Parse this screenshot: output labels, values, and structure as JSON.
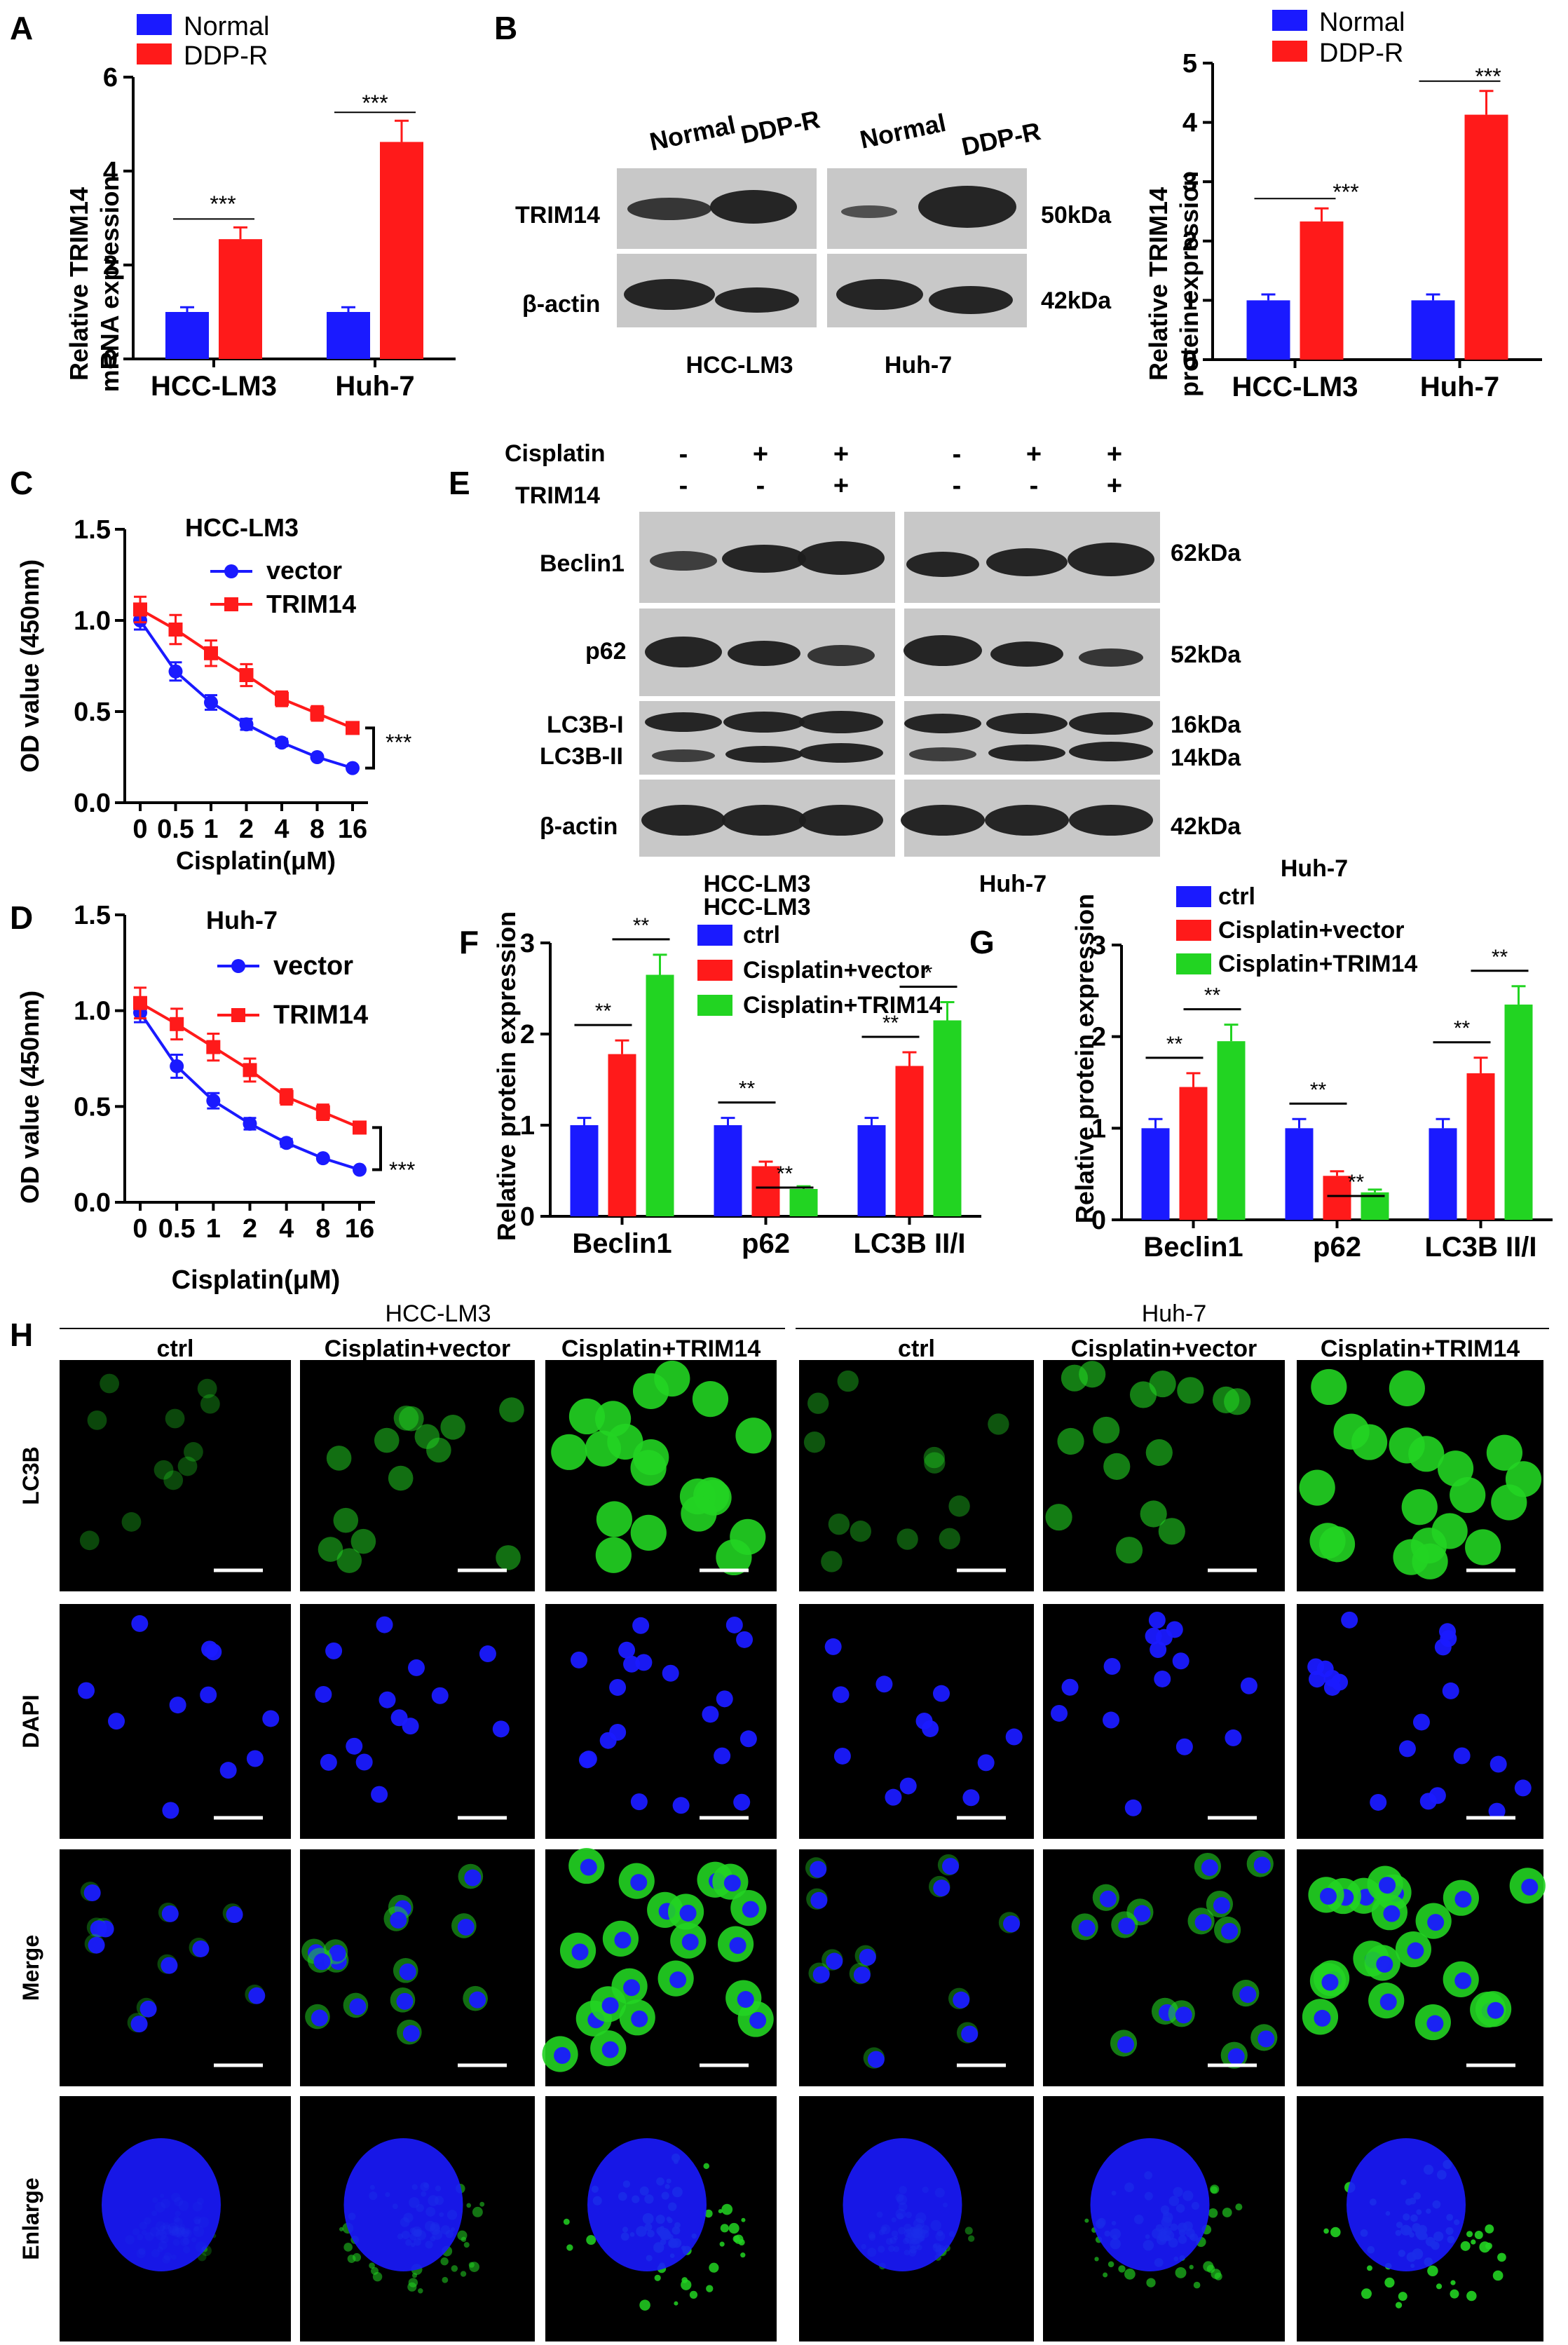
{
  "colors": {
    "blue": "#1a1aff",
    "red": "#ff1a1a",
    "green": "#22d422",
    "blot_bg": "#c8c8c8",
    "micro_bg": "#000000"
  },
  "panels": {
    "A": "A",
    "B": "B",
    "C": "C",
    "D": "D",
    "E": "E",
    "F": "F",
    "G": "G",
    "H": "H"
  },
  "panel_A": {
    "legend": [
      "Normal",
      "DDP-R"
    ],
    "ylabel_line1": "Relative TRIM14",
    "ylabel_line2": "mRNA expression",
    "sig": [
      "***",
      "***"
    ]
  },
  "panel_B": {
    "lanes_left": [
      "Normal",
      "DDP-R"
    ],
    "lanes_right": [
      "Normal",
      "DDP-R"
    ],
    "rows": [
      "TRIM14",
      "β-actin"
    ],
    "sizes": [
      "50kDa",
      "42kDa"
    ],
    "cells": [
      "HCC-LM3",
      "Huh-7"
    ]
  },
  "panel_B_chart": {
    "legend": [
      "Normal",
      "DDP-R"
    ],
    "ylabel_line1": "Relative TRIM14",
    "ylabel_line2": "protein  expression",
    "sig": [
      "***",
      "***"
    ]
  },
  "panel_C": {
    "title": "HCC-LM3",
    "legend": [
      "vector",
      "TRIM14"
    ],
    "ylabel": "OD value (450nm)",
    "xlabel": "Cisplatin(μM)",
    "sig": "***"
  },
  "panel_D": {
    "title": "Huh-7",
    "legend": [
      "vector",
      "TRIM14"
    ],
    "ylabel": "OD value (450nm)",
    "xlabel": "Cisplatin(μM)",
    "sig": "***"
  },
  "panel_E": {
    "treat_labels": [
      "Cisplatin",
      "TRIM14"
    ],
    "cisplatin_signs": [
      "-",
      "+",
      "+",
      "-",
      "+",
      "+"
    ],
    "trim14_signs": [
      "-",
      "-",
      "+",
      "-",
      "-",
      "+"
    ],
    "rows": [
      "Beclin1",
      "p62",
      "LC3B-I",
      "LC3B-II",
      "β-actin"
    ],
    "sizes": [
      "62kDa",
      "52kDa",
      "16kDa",
      "14kDa",
      "42kDa"
    ],
    "cells": [
      "HCC-LM3",
      "Huh-7"
    ]
  },
  "panel_F": {
    "title": "HCC-LM3",
    "legend": [
      "ctrl",
      "Cisplatin+vector",
      "Cisplatin+TRIM14"
    ],
    "ylabel": "Relative protein expression",
    "sig": [
      "**",
      "**",
      "**",
      "**",
      "**",
      "*"
    ]
  },
  "panel_G": {
    "title": "Huh-7",
    "legend": [
      "ctrl",
      "Cisplatin+vector",
      "Cisplatin+TRIM14"
    ],
    "ylabel": "Relative protein expression",
    "sig": [
      "**",
      "**",
      "**",
      "**",
      "**",
      "**"
    ]
  },
  "panel_H": {
    "groups": [
      "HCC-LM3",
      "Huh-7"
    ],
    "columns": [
      "ctrl",
      "Cisplatin+vector",
      "Cisplatin+TRIM14",
      "ctrl",
      "Cisplatin+vector",
      "Cisplatin+TRIM14"
    ],
    "rows": [
      "LC3B",
      "DAPI",
      "Merge",
      "Enlarge"
    ]
  },
  "chart_data": [
    {
      "id": "A",
      "type": "bar",
      "categories": [
        "HCC-LM3",
        "Huh-7"
      ],
      "series": [
        {
          "name": "Normal",
          "values": [
            1.0,
            1.0
          ],
          "errors": [
            0.1,
            0.1
          ]
        },
        {
          "name": "DDP-R",
          "values": [
            2.55,
            4.62
          ],
          "errors": [
            0.25,
            0.45
          ]
        }
      ],
      "ylim": [
        0,
        6
      ],
      "yticks": [
        0,
        2,
        4,
        6
      ]
    },
    {
      "id": "B",
      "type": "bar",
      "categories": [
        "HCC-LM3",
        "Huh-7"
      ],
      "series": [
        {
          "name": "Normal",
          "values": [
            1.0,
            1.0
          ],
          "errors": [
            0.1,
            0.1
          ]
        },
        {
          "name": "DDP-R",
          "values": [
            2.33,
            4.13
          ],
          "errors": [
            0.22,
            0.4
          ]
        }
      ],
      "ylim": [
        0,
        5
      ],
      "yticks": [
        0,
        1,
        2,
        3,
        4,
        5
      ]
    },
    {
      "id": "C",
      "type": "line",
      "x": [
        "0",
        "0.5",
        "1",
        "2",
        "4",
        "8",
        "16"
      ],
      "series": [
        {
          "name": "vector",
          "values": [
            1.0,
            0.72,
            0.55,
            0.43,
            0.33,
            0.25,
            0.19
          ],
          "errors": [
            0.05,
            0.05,
            0.04,
            0.03,
            0.02,
            0.01,
            0.01
          ]
        },
        {
          "name": "TRIM14",
          "values": [
            1.06,
            0.95,
            0.82,
            0.7,
            0.57,
            0.49,
            0.41
          ],
          "errors": [
            0.07,
            0.08,
            0.07,
            0.06,
            0.04,
            0.04,
            0.03
          ]
        }
      ],
      "ylim": [
        0,
        1.5
      ],
      "yticks": [
        0.0,
        0.5,
        1.0,
        1.5
      ]
    },
    {
      "id": "D",
      "type": "line",
      "x": [
        "0",
        "0.5",
        "1",
        "2",
        "4",
        "8",
        "16"
      ],
      "series": [
        {
          "name": "vector",
          "values": [
            0.99,
            0.71,
            0.53,
            0.41,
            0.31,
            0.23,
            0.17
          ],
          "errors": [
            0.05,
            0.06,
            0.04,
            0.03,
            0.02,
            0.01,
            0.01
          ]
        },
        {
          "name": "TRIM14",
          "values": [
            1.04,
            0.93,
            0.81,
            0.69,
            0.55,
            0.47,
            0.39
          ],
          "errors": [
            0.08,
            0.08,
            0.07,
            0.06,
            0.04,
            0.04,
            0.03
          ]
        }
      ],
      "ylim": [
        0,
        1.5
      ],
      "yticks": [
        0.0,
        0.5,
        1.0,
        1.5
      ]
    },
    {
      "id": "F",
      "type": "bar",
      "categories": [
        "Beclin1",
        "p62",
        "LC3B II/I"
      ],
      "series": [
        {
          "name": "ctrl",
          "values": [
            1.0,
            1.0,
            1.0
          ],
          "errors": [
            0.08,
            0.08,
            0.08
          ]
        },
        {
          "name": "Cisplatin+vector",
          "values": [
            1.78,
            0.55,
            1.65
          ],
          "errors": [
            0.15,
            0.05,
            0.15
          ]
        },
        {
          "name": "Cisplatin+TRIM14",
          "values": [
            2.65,
            0.3,
            2.15
          ],
          "errors": [
            0.22,
            0.03,
            0.2
          ]
        }
      ],
      "ylim": [
        0,
        3
      ],
      "yticks": [
        0,
        1,
        2,
        3
      ]
    },
    {
      "id": "G",
      "type": "bar",
      "categories": [
        "Beclin1",
        "p62",
        "LC3B II/I"
      ],
      "series": [
        {
          "name": "ctrl",
          "values": [
            1.0,
            1.0,
            1.0
          ],
          "errors": [
            0.1,
            0.1,
            0.1
          ]
        },
        {
          "name": "Cisplatin+vector",
          "values": [
            1.45,
            0.48,
            1.6
          ],
          "errors": [
            0.15,
            0.05,
            0.17
          ]
        },
        {
          "name": "Cisplatin+TRIM14",
          "values": [
            1.95,
            0.3,
            2.35
          ],
          "errors": [
            0.18,
            0.03,
            0.2
          ]
        }
      ],
      "ylim": [
        0,
        3
      ],
      "yticks": [
        0,
        1,
        2,
        3
      ]
    }
  ]
}
